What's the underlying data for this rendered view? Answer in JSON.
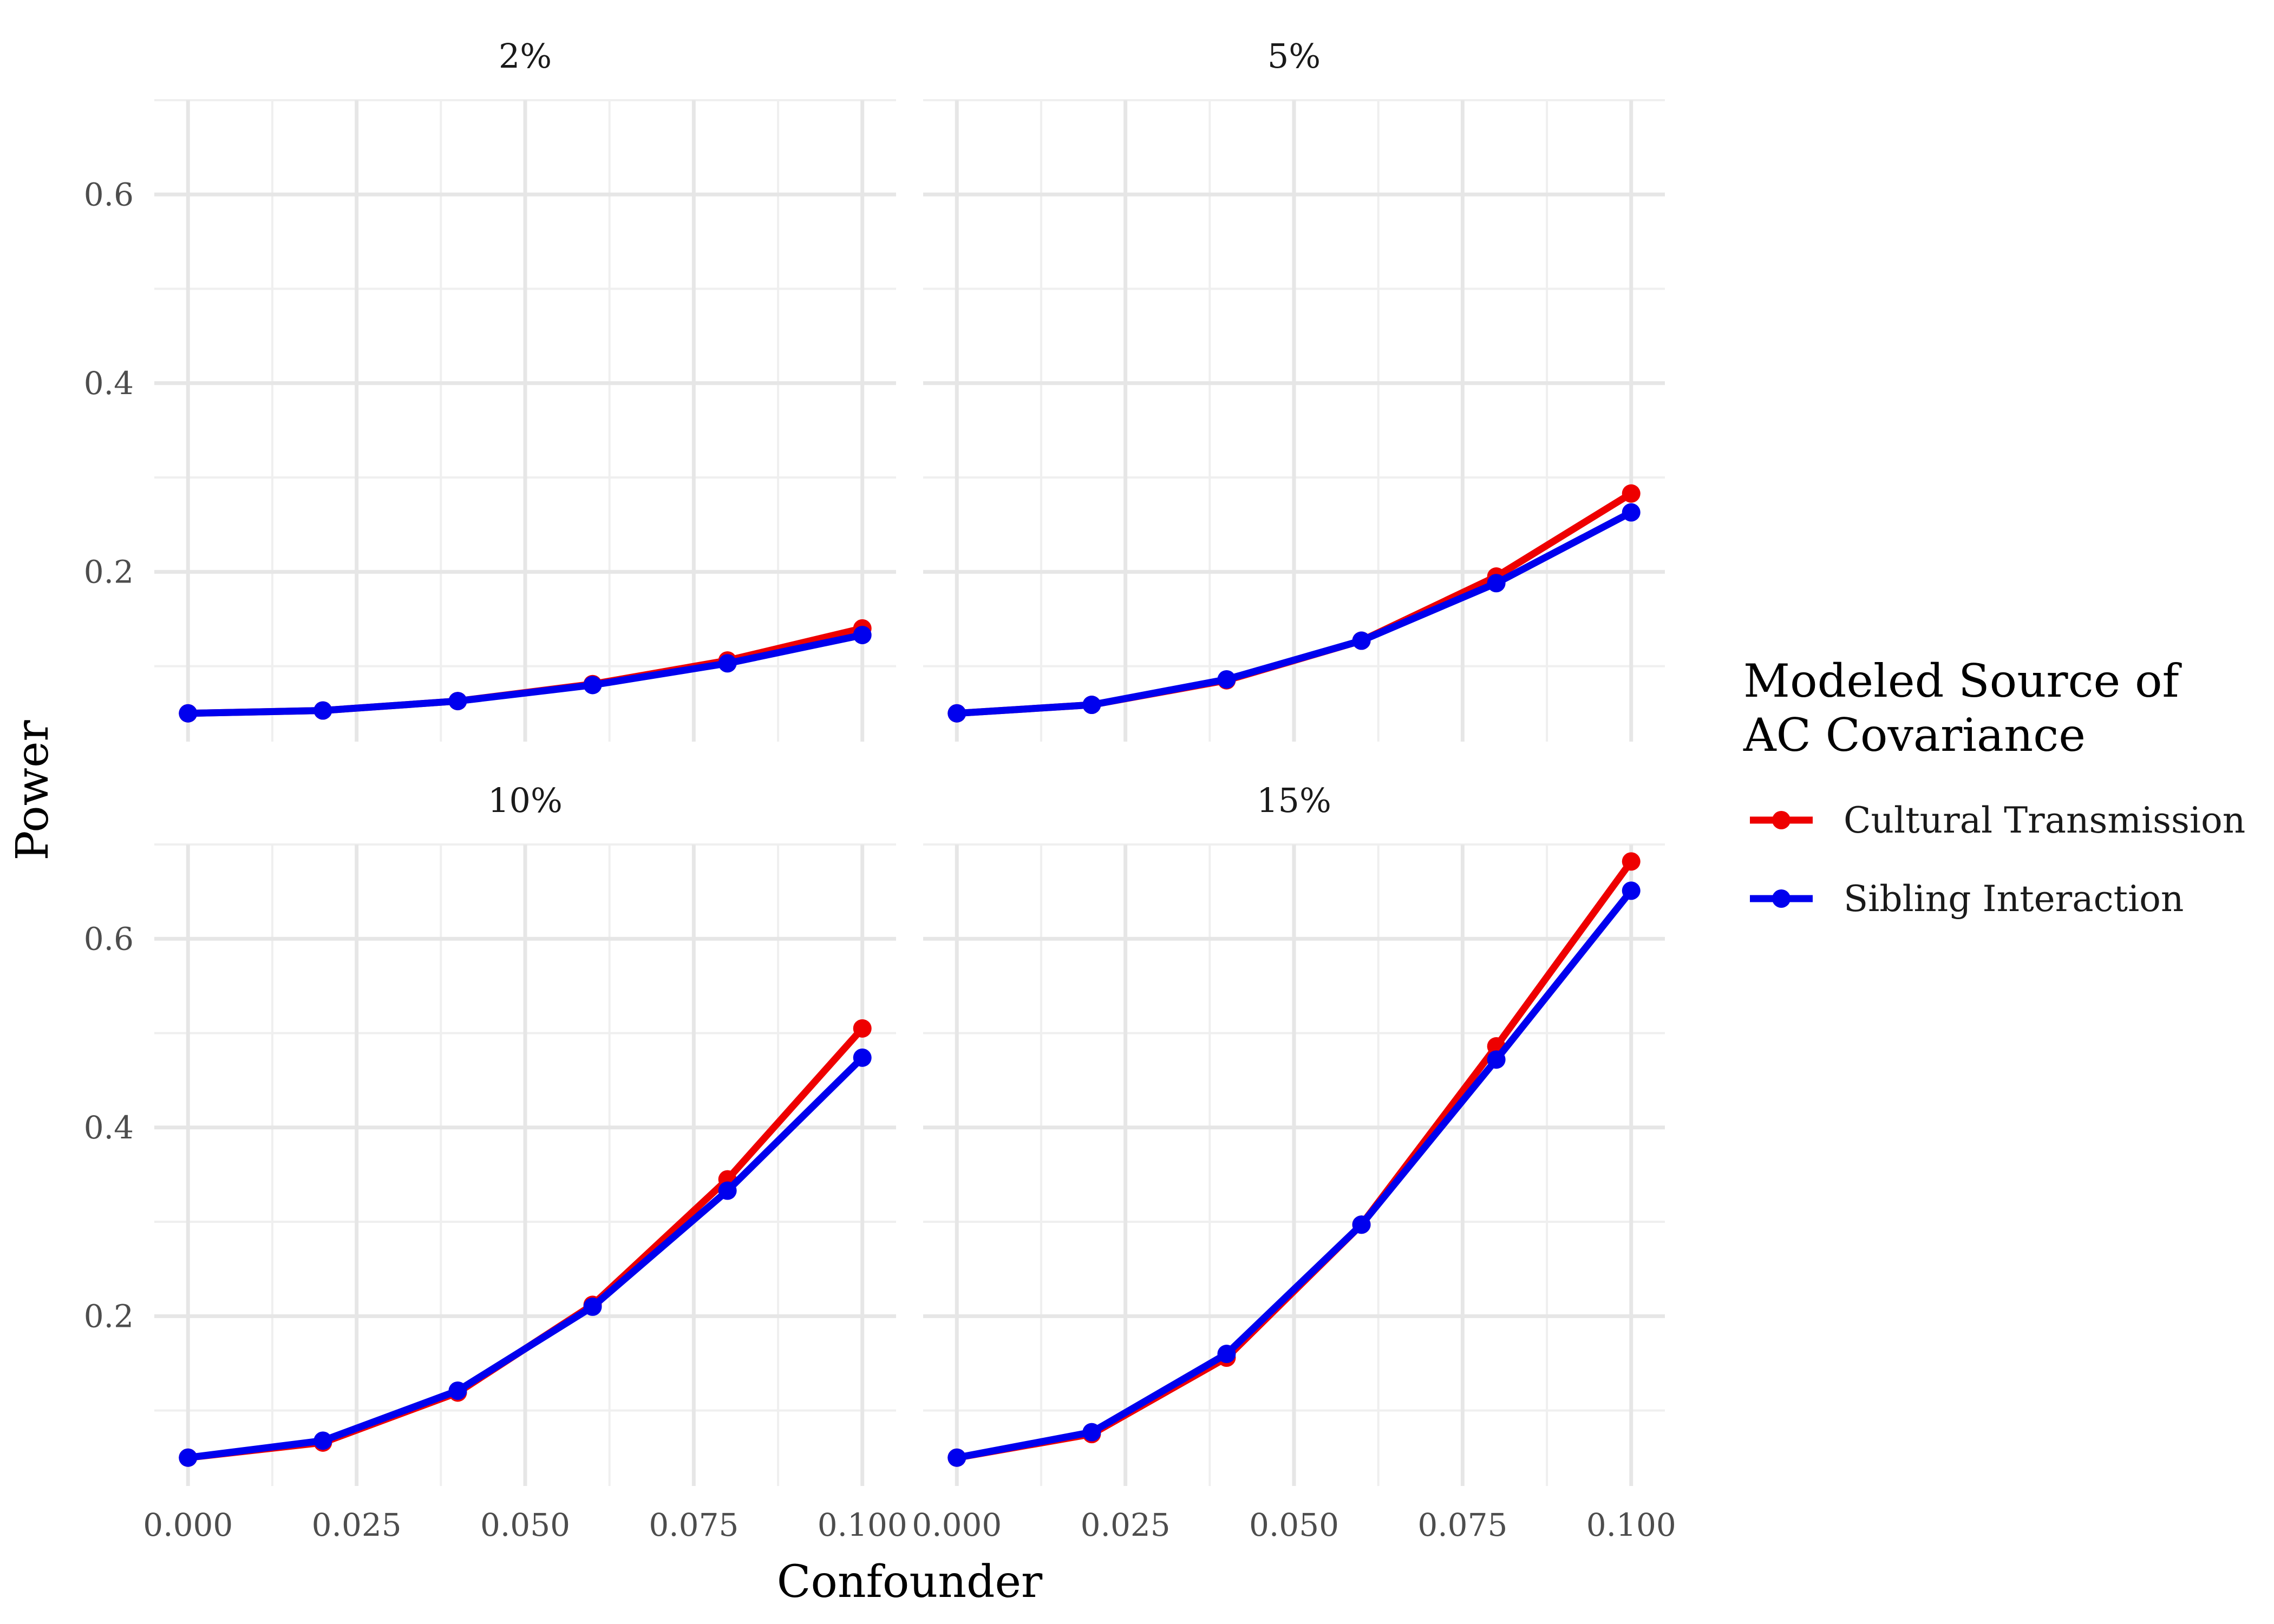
{
  "chart_data": {
    "type": "line",
    "xlabel": "Confounder",
    "ylabel": "Power",
    "x_ticks": [
      "0.000",
      "0.025",
      "0.050",
      "0.075",
      "0.100"
    ],
    "y_ticks": [
      "0.2",
      "0.4",
      "0.6"
    ],
    "xlim": [
      -0.005,
      0.105
    ],
    "ylim": [
      0.02,
      0.7
    ],
    "grid": true,
    "legend": {
      "title_lines": [
        "Modeled Source of",
        "AC Covariance"
      ],
      "position": "right"
    },
    "series_meta": [
      {
        "name": "Cultural Transmission",
        "color": "#ee0000"
      },
      {
        "name": "Sibling Interaction",
        "color": "#0000ee"
      }
    ],
    "x": [
      0.0,
      0.02,
      0.04,
      0.06,
      0.08,
      0.1
    ],
    "panels": [
      {
        "label": "2%",
        "series": [
          {
            "name": "Cultural Transmission",
            "values": [
              0.05,
              0.053,
              0.063,
              0.081,
              0.106,
              0.14
            ]
          },
          {
            "name": "Sibling Interaction",
            "values": [
              0.05,
              0.053,
              0.063,
              0.08,
              0.103,
              0.133
            ]
          }
        ]
      },
      {
        "label": "5%",
        "series": [
          {
            "name": "Cultural Transmission",
            "values": [
              0.05,
              0.059,
              0.085,
              0.127,
              0.195,
              0.283
            ]
          },
          {
            "name": "Sibling Interaction",
            "values": [
              0.05,
              0.059,
              0.086,
              0.127,
              0.188,
              0.263
            ]
          }
        ]
      },
      {
        "label": "10%",
        "series": [
          {
            "name": "Cultural Transmission",
            "values": [
              0.05,
              0.066,
              0.119,
              0.212,
              0.345,
              0.505
            ]
          },
          {
            "name": "Sibling Interaction",
            "values": [
              0.05,
              0.068,
              0.121,
              0.21,
              0.333,
              0.474
            ]
          }
        ]
      },
      {
        "label": "15%",
        "series": [
          {
            "name": "Cultural Transmission",
            "values": [
              0.05,
              0.075,
              0.156,
              0.297,
              0.486,
              0.682
            ]
          },
          {
            "name": "Sibling Interaction",
            "values": [
              0.05,
              0.077,
              0.16,
              0.297,
              0.472,
              0.651
            ]
          }
        ]
      }
    ]
  }
}
